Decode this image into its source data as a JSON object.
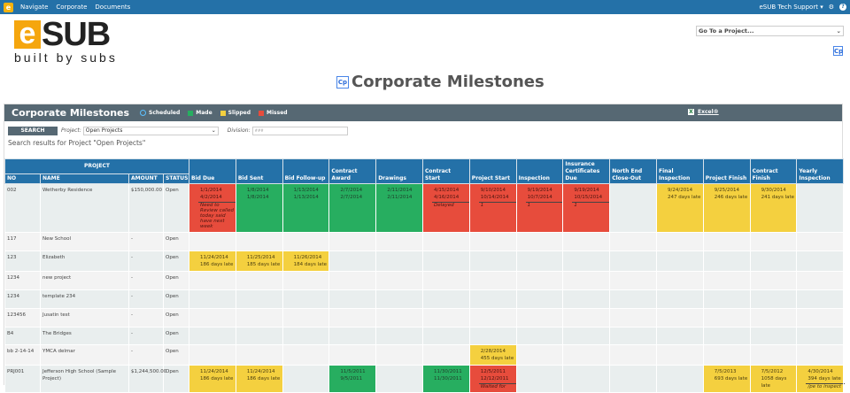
{
  "topbar": {
    "logo": "e",
    "nav": [
      "Navigate",
      "Corporate",
      "Documents"
    ],
    "user": "eSUB Tech Support",
    "icons": [
      "gear-icon",
      "help-icon"
    ]
  },
  "brand": {
    "e": "e",
    "sub": "SUB",
    "tagline": "built by subs"
  },
  "goto": {
    "label": "Go To a Project..."
  },
  "cp_badge": "Cp",
  "page_title": "Corporate Milestones",
  "panel": {
    "title": "Corporate Milestones",
    "legend": [
      {
        "label": "Scheduled",
        "color": "#5bc0ff"
      },
      {
        "label": "Made",
        "color": "#27ae60"
      },
      {
        "label": "Slipped",
        "color": "#f4d03f"
      },
      {
        "label": "Missed",
        "color": "#e74c3c"
      }
    ],
    "excel": "Excel®",
    "search_button": "SEARCH",
    "project_label": "Project:",
    "project_value": "Open Projects",
    "division_label": "Division:",
    "division_value": "###",
    "results_text": "Search results for Project \"Open Projects\""
  },
  "table": {
    "group_header": "PROJECT",
    "project_columns": [
      "NO",
      "NAME",
      "AMOUNT",
      "STATUS"
    ],
    "milestones": [
      "Bid Due",
      "Bid Sent",
      "Bid Follow-up",
      "Contract Award",
      "Drawings",
      "Contract Start",
      "Project Start",
      "Inspection",
      "Insurance Certificates Due",
      "North End Close-Out",
      "Final Inspection",
      "Project Finish",
      "Contract Finish",
      "Yearly Inspection"
    ],
    "rows": [
      {
        "no": "002",
        "name": "Wetherby Residence",
        "amount": "$150,000.00",
        "status": "Open",
        "cells": [
          {
            "s": "missed",
            "lines": [
              "1/1/2014",
              "4/2/2014"
            ],
            "note": "Need to Review called today said have next week"
          },
          {
            "s": "made",
            "lines": [
              "1/8/2014",
              "1/8/2014"
            ]
          },
          {
            "s": "made",
            "lines": [
              "1/13/2014",
              "1/13/2014"
            ]
          },
          {
            "s": "made",
            "lines": [
              "2/7/2014",
              "2/7/2014"
            ]
          },
          {
            "s": "made",
            "lines": [
              "2/11/2014",
              "2/11/2014"
            ]
          },
          {
            "s": "missed",
            "lines": [
              "4/15/2014",
              "4/16/2014"
            ],
            "note": "Delayed"
          },
          {
            "s": "missed",
            "lines": [
              "9/10/2014",
              "10/14/2014"
            ],
            "note": "1"
          },
          {
            "s": "missed",
            "lines": [
              "9/19/2014",
              "10/7/2014"
            ],
            "note": "1"
          },
          {
            "s": "missed",
            "lines": [
              "9/19/2014",
              "10/15/2014"
            ],
            "note": "1"
          },
          null,
          {
            "s": "slipped",
            "lines": [
              "9/24/2014",
              "247 days late"
            ]
          },
          {
            "s": "slipped",
            "lines": [
              "9/25/2014",
              "246 days late"
            ]
          },
          {
            "s": "slipped",
            "lines": [
              "9/30/2014",
              "241 days late"
            ]
          },
          null
        ]
      },
      {
        "no": "117",
        "name": "New School",
        "amount": "-",
        "status": "Open",
        "cells": []
      },
      {
        "no": "123",
        "name": "Elizabeth",
        "amount": "-",
        "status": "Open",
        "cells": [
          {
            "s": "slipped",
            "lines": [
              "11/24/2014",
              "186 days late"
            ]
          },
          {
            "s": "slipped",
            "lines": [
              "11/25/2014",
              "185 days late"
            ]
          },
          {
            "s": "slipped",
            "lines": [
              "11/26/2014",
              "184 days late"
            ]
          }
        ]
      },
      {
        "no": "1234",
        "name": "new project",
        "amount": "-",
        "status": "Open",
        "cells": []
      },
      {
        "no": "1234",
        "name": "template 234",
        "amount": "-",
        "status": "Open",
        "cells": []
      },
      {
        "no": "123456",
        "name": "Jusatin test",
        "amount": "-",
        "status": "Open",
        "cells": []
      },
      {
        "no": "B4",
        "name": "The Bridges",
        "amount": "-",
        "status": "Open",
        "cells": []
      },
      {
        "no": "bb 2-14-14",
        "name": "YMCA delmar",
        "amount": "-",
        "status": "Open",
        "cells": [
          null,
          null,
          null,
          null,
          null,
          null,
          {
            "s": "slipped",
            "lines": [
              "2/28/2014",
              "455 days late"
            ]
          }
        ]
      },
      {
        "no": "PRJ001",
        "name": "Jefferson High School (Sample Project)",
        "amount": "$1,244,500.00",
        "status": "Open",
        "cells": [
          {
            "s": "slipped",
            "lines": [
              "11/24/2014",
              "186 days late"
            ]
          },
          {
            "s": "slipped",
            "lines": [
              "11/24/2014",
              "186 days late"
            ]
          },
          null,
          {
            "s": "made",
            "lines": [
              "11/5/2011",
              "9/5/2011"
            ]
          },
          null,
          {
            "s": "made",
            "lines": [
              "11/30/2011",
              "11/30/2011"
            ]
          },
          {
            "s": "missed",
            "lines": [
              "12/5/2011",
              "12/12/2011"
            ],
            "note": "Waited for"
          },
          null,
          null,
          null,
          null,
          {
            "s": "slipped",
            "lines": [
              "7/5/2013",
              "693 days late"
            ]
          },
          {
            "s": "slipped",
            "lines": [
              "7/5/2012",
              "1058 days late"
            ]
          },
          {
            "s": "slipped",
            "lines": [
              "4/30/2014",
              "394 days late"
            ],
            "note": "/pe to inspect"
          }
        ]
      }
    ]
  }
}
